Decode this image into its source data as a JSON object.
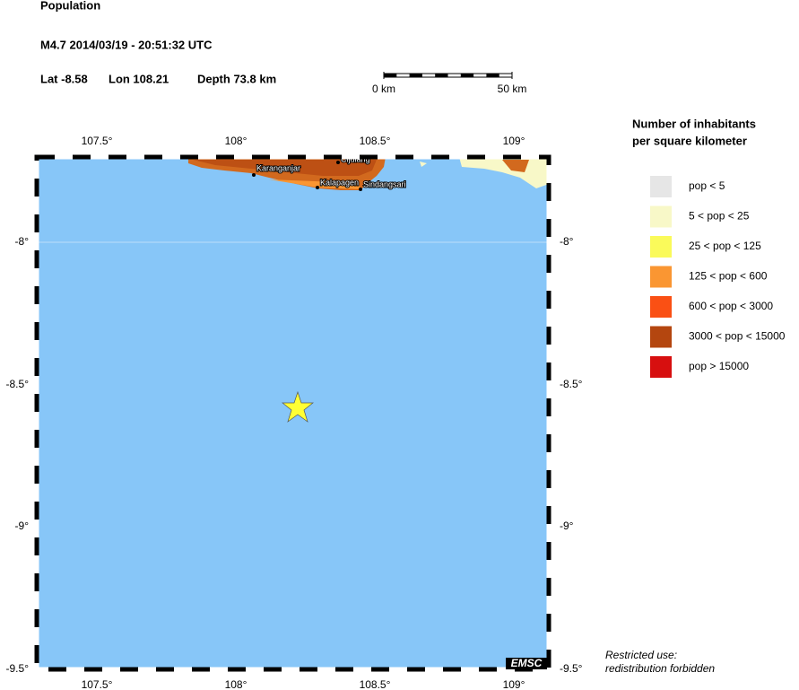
{
  "header": {
    "title": "Population",
    "event": "M4.7  2014/03/19 - 20:51:32 UTC",
    "lat": "Lat -8.58",
    "lon": "Lon 108.21",
    "depth": "Depth  73.8 km"
  },
  "scale_bar": {
    "start": "0 km",
    "end": "50 km"
  },
  "axes": {
    "x_labels": [
      "107.5°",
      "108°",
      "108.5°",
      "109°"
    ],
    "y_labels": [
      "-8°",
      "-8.5°",
      "-9°",
      "-9.5°"
    ]
  },
  "cities": [
    "Karanganjar",
    "Cijulang",
    "Kalapagen",
    "Sindangsari"
  ],
  "legend": {
    "title": [
      "Number of inhabitants",
      "per square kilometer"
    ],
    "items": [
      {
        "label": "pop < 5",
        "color": "#e6e6e6"
      },
      {
        "label": "5 < pop < 25",
        "color": "#f8f8c8"
      },
      {
        "label": "25 < pop < 125",
        "color": "#fafa5a"
      },
      {
        "label": "125 < pop < 600",
        "color": "#fa9632"
      },
      {
        "label": "600 < pop < 3000",
        "color": "#fa5014"
      },
      {
        "label": "3000 < pop < 15000",
        "color": "#b4460f"
      },
      {
        "label": "pop > 15000",
        "color": "#d70f0f"
      }
    ]
  },
  "footer": {
    "note": [
      "Restricted use:",
      "redistribution forbidden"
    ],
    "logo": "EMSC"
  }
}
